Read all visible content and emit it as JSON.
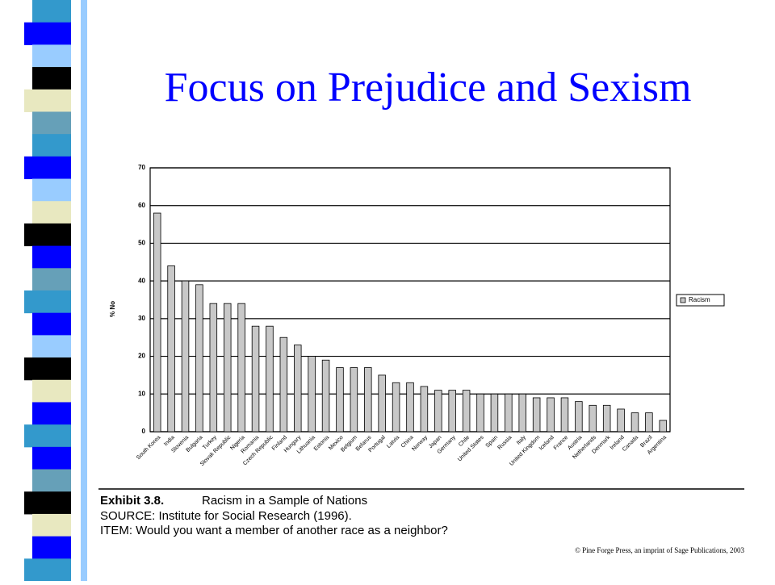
{
  "slide_title": "Focus on Prejudice and Sexism",
  "chart_data": {
    "type": "bar",
    "categories": [
      "South Korea",
      "India",
      "Slovenia",
      "Bulgaria",
      "Turkey",
      "Slovak Republic",
      "Nigeria",
      "Romania",
      "Czech Republic",
      "Finland",
      "Hungary",
      "Lithuania",
      "Estonia",
      "Mexico",
      "Belgium",
      "Belarus",
      "Portugal",
      "Latvia",
      "China",
      "Norway",
      "Japan",
      "Germany",
      "Chile",
      "United States",
      "Spain",
      "Russia",
      "Italy",
      "United Kingdom",
      "Iceland",
      "France",
      "Austria",
      "Netherlands",
      "Denmark",
      "Ireland",
      "Canada",
      "Brazil",
      "Argentina"
    ],
    "series": [
      {
        "name": "Racism",
        "color": "#c8c8c8",
        "values": [
          58,
          44,
          40,
          39,
          34,
          34,
          34,
          28,
          28,
          25,
          23,
          20,
          19,
          17,
          17,
          17,
          15,
          13,
          13,
          12,
          11,
          11,
          11,
          10,
          10,
          10,
          10,
          9,
          9,
          9,
          8,
          7,
          7,
          6,
          5,
          5,
          3
        ]
      }
    ],
    "ylabel": "% No",
    "ylim": [
      0,
      70
    ],
    "yticks": [
      0,
      10,
      20,
      30,
      40,
      50,
      60,
      70
    ],
    "grid": true,
    "legend": "right"
  },
  "caption": {
    "label": "Exhibit 3.8.",
    "title": "Racism in a Sample of Nations",
    "source": "SOURCE: Institute for Social Research (1996).",
    "item": "ITEM: Would you want a member of another race as a neighbor?"
  },
  "copyright": "© Pine Forge Press, an imprint of Sage Publications, 2003"
}
